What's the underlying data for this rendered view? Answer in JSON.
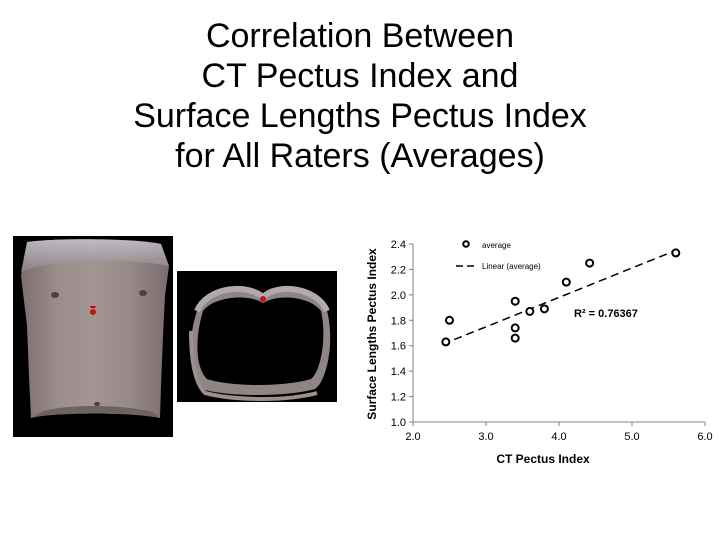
{
  "slide": {
    "title_lines": [
      "Correlation Between",
      "CT Pectus Index and",
      "Surface Lengths Pectus Index",
      "for All Raters (Averages)"
    ]
  },
  "images": {
    "front": "torso-front-scan",
    "axial": "torso-axial-scan"
  },
  "chart_data": {
    "type": "scatter",
    "xlabel": "CT Pectus Index",
    "ylabel": "Surface Lengths Pectus Index",
    "xlim": [
      2.0,
      6.0
    ],
    "ylim": [
      1.0,
      2.4
    ],
    "xticks": [
      "2.0",
      "3.0",
      "4.0",
      "5.0",
      "6.0"
    ],
    "yticks": [
      "1.0",
      "1.2",
      "1.4",
      "1.6",
      "1.8",
      "2.0",
      "2.2",
      "2.4"
    ],
    "grid": false,
    "legend_position": "top-left",
    "series": [
      {
        "name": "average",
        "marker": "open-circle",
        "points": [
          {
            "x": 2.45,
            "y": 1.63
          },
          {
            "x": 2.5,
            "y": 1.8
          },
          {
            "x": 3.4,
            "y": 1.95
          },
          {
            "x": 3.4,
            "y": 1.74
          },
          {
            "x": 3.4,
            "y": 1.66
          },
          {
            "x": 3.6,
            "y": 1.87
          },
          {
            "x": 3.8,
            "y": 1.89
          },
          {
            "x": 4.1,
            "y": 2.1
          },
          {
            "x": 4.42,
            "y": 2.25
          },
          {
            "x": 5.6,
            "y": 2.33
          }
        ]
      }
    ],
    "trendline": {
      "name": "Linear  (average)",
      "style": "dashed",
      "x_range": [
        2.4,
        5.6
      ],
      "y_range": [
        1.61,
        2.35
      ]
    },
    "annotation": "R² = 0.76367",
    "colors": {
      "marker": "#000000",
      "trendline": "#000000"
    }
  }
}
